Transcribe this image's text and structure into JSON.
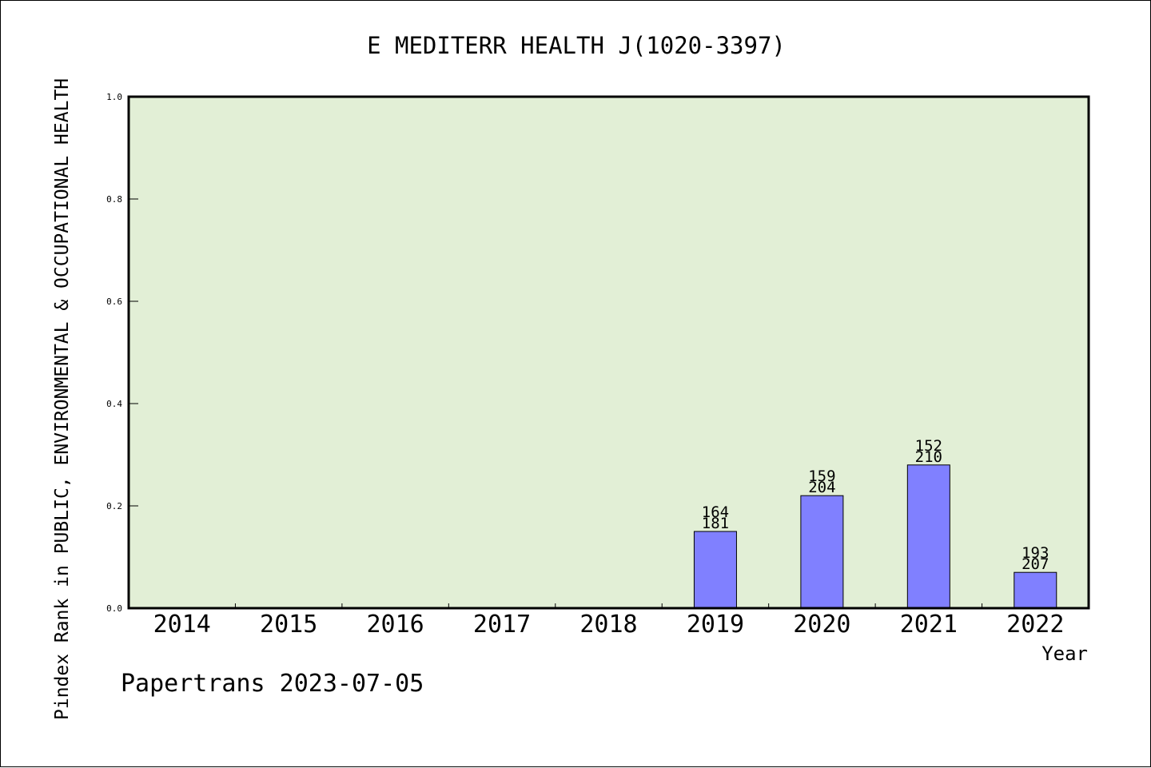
{
  "chart_data": {
    "type": "bar",
    "title": "E MEDITERR HEALTH J(1020-3397)",
    "xlabel": "Year",
    "ylabel": "Pindex Rank in PUBLIC, ENVIRONMENTAL & OCCUPATIONAL HEALTH",
    "ylim": [
      0,
      1.0
    ],
    "yticks": [
      "0.0",
      "0.2",
      "0.4",
      "0.6",
      "0.8",
      "1.0"
    ],
    "categories": [
      "2014",
      "2015",
      "2016",
      "2017",
      "2018",
      "2019",
      "2020",
      "2021",
      "2022"
    ],
    "values": [
      null,
      null,
      null,
      null,
      null,
      0.15,
      0.22,
      0.28,
      0.07
    ],
    "label_top": [
      null,
      null,
      null,
      null,
      null,
      "164",
      "159",
      "152",
      "193"
    ],
    "label_bottom": [
      null,
      null,
      null,
      null,
      null,
      "181",
      "204",
      "210",
      "207"
    ],
    "grid": false,
    "legend": "none",
    "colors": {
      "plot_bg": "#e2efd6",
      "bar": "#8080ff",
      "axis": "#000000"
    }
  },
  "footer": "Papertrans 2023-07-05"
}
